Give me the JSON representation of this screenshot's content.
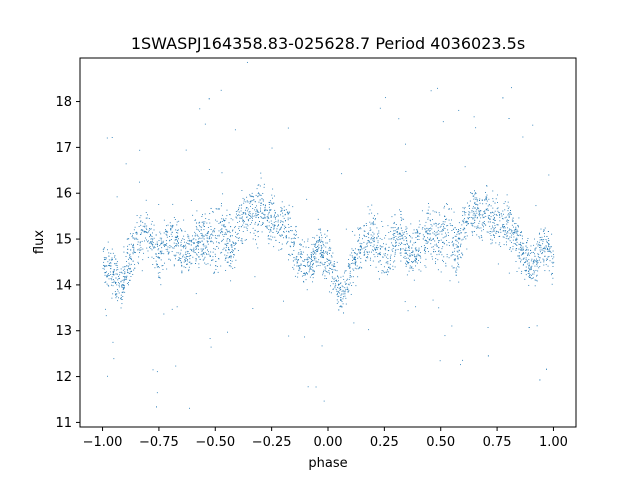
{
  "chart_data": {
    "type": "scatter",
    "title": "1SWASPJ164358.83-025628.7 Period 4036023.5s",
    "xlabel": "phase",
    "ylabel": "flux",
    "xlim": [
      -1.1,
      1.1
    ],
    "ylim": [
      10.9,
      18.95
    ],
    "xticks": [
      -1.0,
      -0.75,
      -0.5,
      -0.25,
      0.0,
      0.25,
      0.5,
      0.75,
      1.0
    ],
    "xtick_labels": [
      "−1.00",
      "−0.75",
      "−0.50",
      "−0.25",
      "0.00",
      "0.25",
      "0.50",
      "0.75",
      "1.00"
    ],
    "yticks": [
      11,
      12,
      13,
      14,
      15,
      16,
      17,
      18
    ],
    "ytick_labels": [
      "11",
      "12",
      "13",
      "14",
      "15",
      "16",
      "17",
      "18"
    ],
    "grid": false,
    "marker_color": "#1f77b4",
    "series": [
      {
        "x": [
          -1.0,
          -0.97,
          -0.95,
          -0.92,
          -0.9,
          -0.87,
          -0.85,
          -0.82,
          -0.8,
          -0.77,
          -0.75,
          -0.72,
          -0.7,
          -0.67,
          -0.65,
          -0.62,
          -0.6,
          -0.57,
          -0.55,
          -0.52,
          -0.5,
          -0.47,
          -0.45,
          -0.42,
          -0.4,
          -0.37,
          -0.35,
          -0.32,
          -0.3,
          -0.27,
          -0.25,
          -0.22,
          -0.2,
          -0.17,
          -0.15,
          -0.12,
          -0.1,
          -0.07,
          -0.05,
          -0.02,
          0.0,
          0.03,
          0.05,
          0.08,
          0.1,
          0.13,
          0.15,
          0.18,
          0.2,
          0.23,
          0.25,
          0.28,
          0.3,
          0.33,
          0.35,
          0.38,
          0.4,
          0.43,
          0.45,
          0.48,
          0.5,
          0.53,
          0.55,
          0.58,
          0.6,
          0.63,
          0.65,
          0.68,
          0.7,
          0.73,
          0.75,
          0.78,
          0.8,
          0.83,
          0.85,
          0.88,
          0.9,
          0.93,
          0.95,
          0.98,
          1.0
        ],
        "y": [
          14.5,
          14.4,
          14.2,
          13.9,
          14.3,
          14.7,
          15.0,
          15.1,
          15.2,
          14.8,
          14.6,
          14.9,
          15.1,
          15.0,
          14.8,
          14.7,
          14.9,
          15.0,
          15.1,
          15.0,
          14.9,
          15.2,
          15.0,
          14.8,
          15.3,
          15.5,
          15.6,
          15.5,
          15.7,
          15.4,
          15.5,
          15.3,
          15.4,
          15.1,
          14.8,
          14.6,
          14.4,
          14.6,
          14.9,
          14.7,
          14.5,
          14.2,
          13.8,
          14.0,
          14.3,
          14.6,
          14.9,
          15.0,
          15.1,
          14.8,
          14.6,
          14.8,
          15.0,
          15.0,
          14.8,
          14.7,
          14.9,
          15.0,
          15.1,
          15.0,
          14.9,
          15.2,
          15.0,
          14.8,
          15.3,
          15.5,
          15.6,
          15.5,
          15.7,
          15.4,
          15.5,
          15.3,
          15.4,
          15.1,
          14.8,
          14.6,
          14.4,
          14.6,
          14.9,
          14.7,
          14.5
        ],
        "spread": [
          0.6,
          0.6,
          0.7,
          0.7,
          0.8,
          0.9,
          0.8,
          0.9,
          0.8,
          0.8,
          0.9,
          0.9,
          0.8,
          0.8,
          0.8,
          0.8,
          0.9,
          0.9,
          0.9,
          0.9,
          0.9,
          1.0,
          1.0,
          0.9,
          0.8,
          0.8,
          0.8,
          0.8,
          0.8,
          0.8,
          0.8,
          0.8,
          0.8,
          0.8,
          0.8,
          0.7,
          0.7,
          0.7,
          0.7,
          0.8,
          0.8,
          0.7,
          0.6,
          0.7,
          0.7,
          0.7,
          0.8,
          0.9,
          0.8,
          0.8,
          0.9,
          0.9,
          0.8,
          0.8,
          0.8,
          0.8,
          0.9,
          0.9,
          0.9,
          0.9,
          0.9,
          1.0,
          1.0,
          0.9,
          0.8,
          0.8,
          0.8,
          0.8,
          0.8,
          0.8,
          0.8,
          0.8,
          0.8,
          0.8,
          0.8,
          0.7,
          0.7,
          0.7,
          0.7,
          0.8,
          0.6
        ]
      }
    ]
  }
}
